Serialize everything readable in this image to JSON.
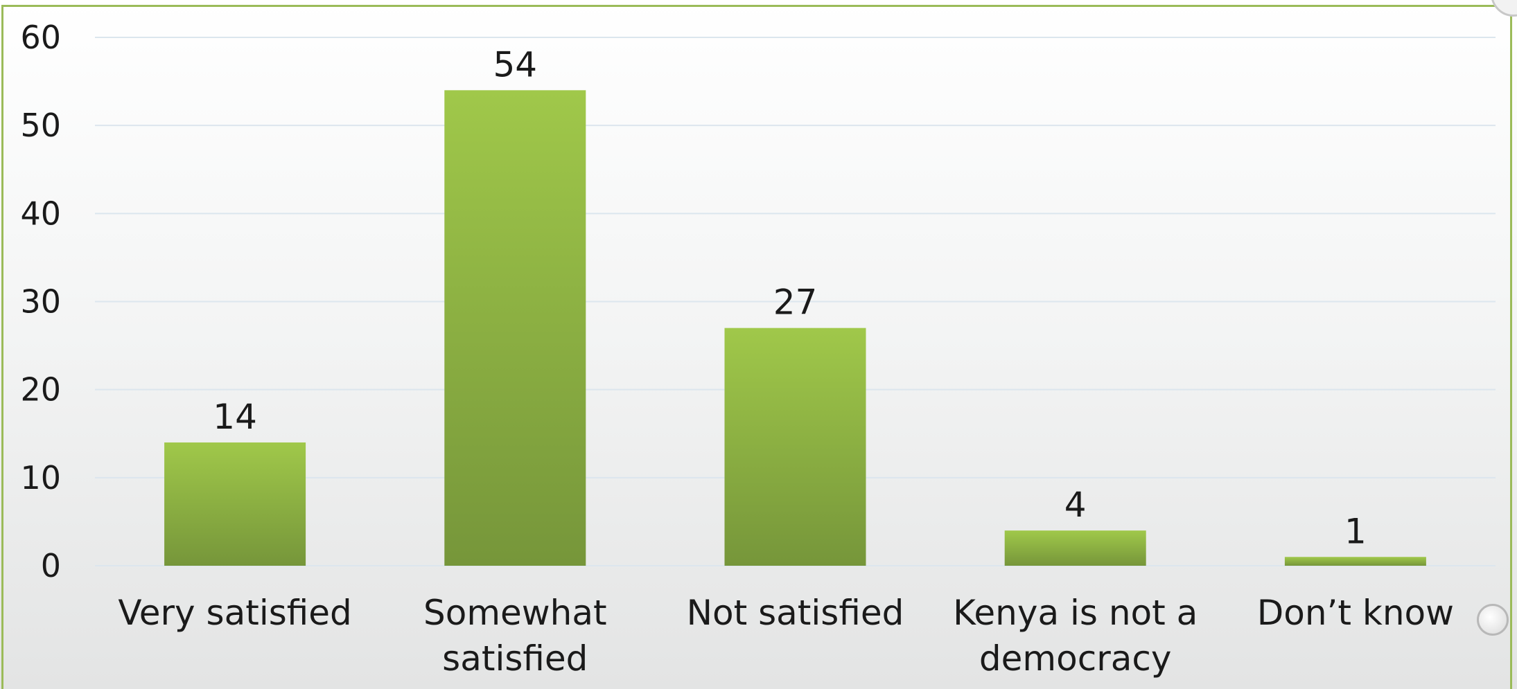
{
  "chart_data": {
    "type": "bar",
    "title": "",
    "xlabel": "",
    "ylabel": "",
    "ylim": [
      0,
      60
    ],
    "yticks": [
      0,
      10,
      20,
      30,
      40,
      50,
      60
    ],
    "grid": true,
    "legend": "none",
    "categories": [
      [
        "Very satisfied"
      ],
      [
        "Somewhat",
        "satisfied"
      ],
      [
        "Not satisfied"
      ],
      [
        "Kenya is not a",
        "democracy"
      ],
      [
        "Don’t know"
      ]
    ],
    "values": [
      14,
      54,
      27,
      4,
      1
    ],
    "data_labels": [
      "14",
      "54",
      "27",
      "4",
      "1"
    ],
    "colors": {
      "bar_top": "#a0c84a",
      "bar_bottom": "#76963a",
      "gridline": "#dce6ee",
      "frame": "#9bbb59",
      "text": "#1a1a1a"
    }
  }
}
